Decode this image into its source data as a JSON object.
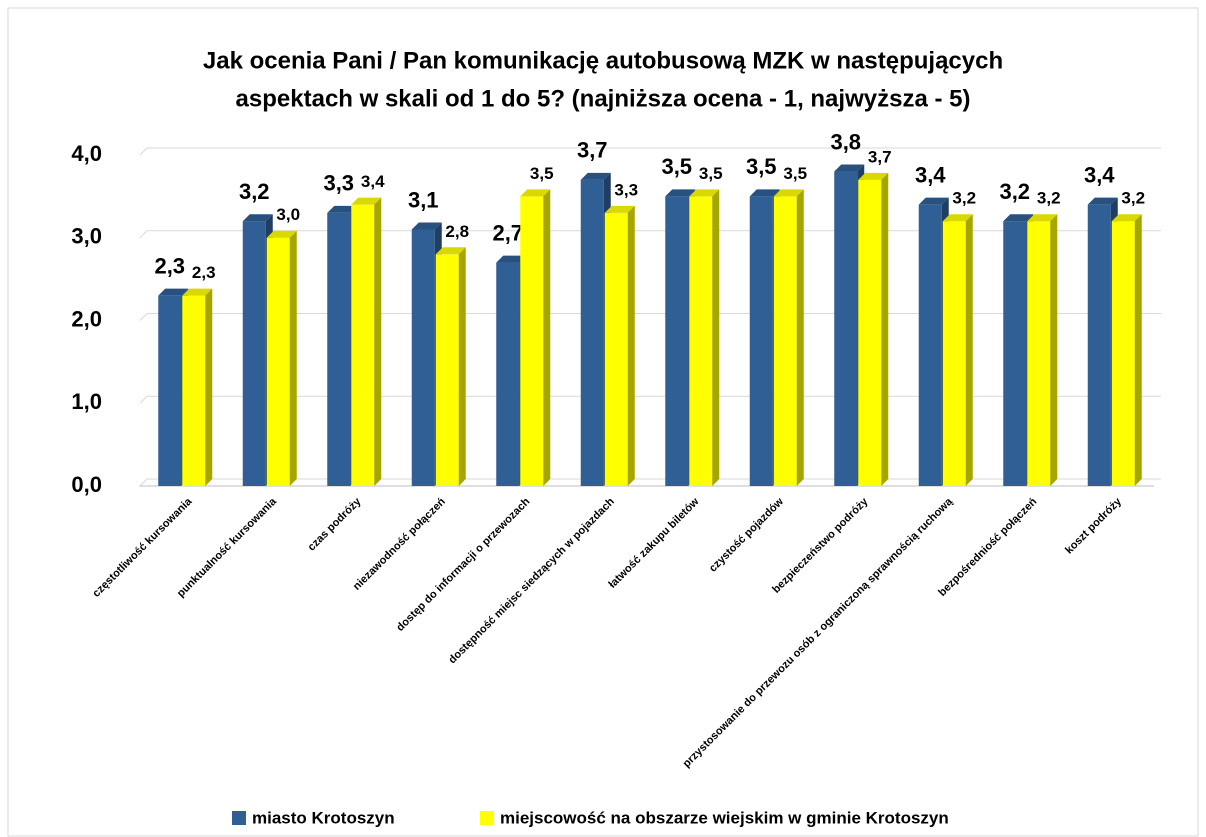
{
  "chart_data": {
    "type": "bar3d",
    "title": [
      "Jak ocenia Pani / Pan komunikację autobusową MZK w następujących",
      "aspektach w skali od 1 do 5? (najniższa ocena - 1, najwyższa - 5)"
    ],
    "categories": [
      "częstotliwość kursowania",
      "punktualność kursowania",
      "czas podróży",
      "niezawodność połączeń",
      "dostęp do informacji o przewozach",
      "dostępność miejsc siedzących w pojazdach",
      "łatwość zakupu biletów",
      "czystość pojazdów",
      "bezpieczeństwo podróży",
      "przystosowanie do przewozu osób z ograniczoną sprawnością ruchową",
      "bezpośredniość połączeń",
      "koszt podróży"
    ],
    "series": [
      {
        "name": "miasto Krotoszyn",
        "color": "#305f96",
        "values": [
          2.3,
          3.2,
          3.3,
          3.1,
          2.7,
          3.7,
          3.5,
          3.5,
          3.8,
          3.4,
          3.2,
          3.4
        ],
        "value_labels": [
          "2,3",
          "3,2",
          "3,3",
          "3,1",
          "2,7",
          "3,7",
          "3,5",
          "3,5",
          "3,8",
          "3,4",
          "3,2",
          "3,4"
        ]
      },
      {
        "name": "miejscowość na obszarze wiejskim w gminie Krotoszyn",
        "color": "#ffff00",
        "values": [
          2.3,
          3.0,
          3.4,
          2.8,
          3.5,
          3.3,
          3.5,
          3.5,
          3.7,
          3.2,
          3.2,
          3.2
        ],
        "value_labels": [
          "2,3",
          "3,0",
          "3,4",
          "2,8",
          "3,5",
          "3,3",
          "3,5",
          "3,5",
          "3,7",
          "3,2",
          "3,2",
          "3,2"
        ]
      }
    ],
    "ylim": [
      0,
      4
    ],
    "yticks": [
      {
        "value": 0,
        "label": "0,0"
      },
      {
        "value": 1,
        "label": "1,0"
      },
      {
        "value": 2,
        "label": "2,0"
      },
      {
        "value": 3,
        "label": "3,0"
      },
      {
        "value": 4,
        "label": "4,0"
      }
    ],
    "grid": true,
    "legend": "bottom"
  }
}
